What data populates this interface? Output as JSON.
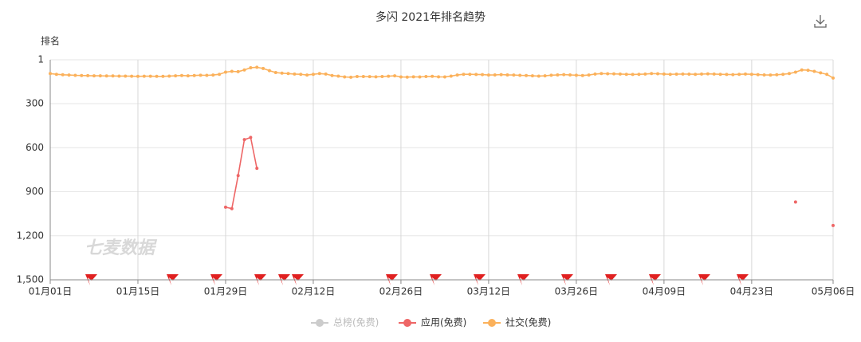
{
  "chart_data": {
    "type": "line",
    "title": "多闪 2021年排名趋势",
    "y_label": "排名",
    "watermark": "七麦数据",
    "categories": [
      "01月01日",
      null,
      null,
      null,
      null,
      null,
      null,
      null,
      null,
      null,
      null,
      null,
      null,
      null,
      "01月15日",
      null,
      null,
      null,
      null,
      null,
      null,
      null,
      null,
      null,
      null,
      null,
      null,
      null,
      "01月29日",
      null,
      null,
      null,
      null,
      null,
      null,
      null,
      null,
      null,
      null,
      null,
      null,
      null,
      "02月12日",
      null,
      null,
      null,
      null,
      null,
      null,
      null,
      null,
      null,
      null,
      null,
      null,
      null,
      "02月26日",
      null,
      null,
      null,
      null,
      null,
      null,
      null,
      null,
      null,
      null,
      null,
      null,
      null,
      "03月12日",
      null,
      null,
      null,
      null,
      null,
      null,
      null,
      null,
      null,
      null,
      null,
      null,
      null,
      "03月26日",
      null,
      null,
      null,
      null,
      null,
      null,
      null,
      null,
      null,
      null,
      null,
      null,
      null,
      "04月09日",
      null,
      null,
      null,
      null,
      null,
      null,
      null,
      null,
      null,
      null,
      null,
      null,
      null,
      "04月23日",
      null,
      null,
      null,
      null,
      null,
      null,
      null,
      null,
      null,
      null,
      null,
      null,
      "05月06日"
    ],
    "series": [
      {
        "name": "总榜(免费)",
        "color": "#cccccc",
        "hidden": true,
        "values": [
          null,
          null,
          null,
          null,
          null,
          null,
          null,
          null,
          null,
          null,
          null,
          null,
          null,
          null,
          null,
          null,
          null,
          null,
          null,
          null,
          null,
          null,
          null,
          null,
          null,
          null,
          null,
          null,
          null,
          null,
          null,
          null,
          null,
          null,
          null,
          null,
          null,
          null,
          null,
          null,
          null,
          null,
          null,
          null,
          null,
          null,
          null,
          null,
          null,
          null,
          null,
          null,
          null,
          null,
          null,
          null,
          null,
          null,
          null,
          null,
          null,
          null,
          null,
          null,
          null,
          null,
          null,
          null,
          null,
          null,
          null,
          null,
          null,
          null,
          null,
          null,
          null,
          null,
          null,
          null,
          null,
          null,
          null,
          null,
          null,
          null,
          null,
          null,
          null,
          null,
          null,
          null,
          null,
          null,
          null,
          null,
          null,
          null,
          null,
          null,
          null,
          null,
          null,
          null,
          null,
          null,
          null,
          null,
          null,
          null,
          null,
          null,
          null,
          null,
          null,
          null,
          null,
          null,
          null,
          null,
          null,
          null,
          null,
          null,
          null,
          null
        ]
      },
      {
        "name": "应用(免费)",
        "color": "#ee6666",
        "values": [
          null,
          null,
          null,
          null,
          null,
          null,
          null,
          null,
          null,
          null,
          null,
          null,
          null,
          null,
          null,
          null,
          null,
          null,
          null,
          null,
          null,
          null,
          null,
          null,
          null,
          null,
          null,
          null,
          1005,
          1015,
          790,
          545,
          530,
          740,
          null,
          null,
          null,
          null,
          null,
          null,
          null,
          null,
          null,
          null,
          null,
          null,
          null,
          null,
          null,
          null,
          null,
          null,
          null,
          null,
          null,
          null,
          null,
          null,
          null,
          null,
          null,
          null,
          null,
          null,
          null,
          null,
          null,
          null,
          null,
          null,
          null,
          null,
          null,
          null,
          null,
          null,
          null,
          null,
          null,
          null,
          null,
          null,
          null,
          null,
          null,
          null,
          null,
          null,
          null,
          null,
          null,
          null,
          null,
          null,
          null,
          null,
          null,
          null,
          null,
          null,
          null,
          null,
          null,
          null,
          null,
          null,
          null,
          null,
          null,
          null,
          null,
          null,
          null,
          null,
          null,
          null,
          null,
          null,
          null,
          970,
          null,
          null,
          null,
          null,
          null,
          1130
        ]
      },
      {
        "name": "社交(免费)",
        "color": "#fbb15b",
        "values": [
          95,
          100,
          103,
          105,
          107,
          108,
          109,
          110,
          110,
          111,
          111,
          112,
          112,
          113,
          114,
          113,
          113,
          114,
          114,
          112,
          110,
          108,
          110,
          108,
          106,
          107,
          105,
          100,
          85,
          80,
          82,
          70,
          55,
          52,
          60,
          75,
          88,
          92,
          95,
          98,
          100,
          105,
          100,
          95,
          98,
          108,
          112,
          118,
          120,
          115,
          115,
          116,
          117,
          115,
          113,
          110,
          118,
          119,
          117,
          118,
          115,
          114,
          117,
          118,
          112,
          105,
          100,
          100,
          101,
          102,
          105,
          104,
          102,
          104,
          105,
          107,
          108,
          110,
          112,
          110,
          106,
          104,
          102,
          104,
          106,
          108,
          105,
          98,
          95,
          96,
          97,
          98,
          100,
          101,
          100,
          98,
          95,
          96,
          98,
          100,
          99,
          98,
          99,
          100,
          98,
          97,
          98,
          100,
          101,
          102,
          100,
          98,
          100,
          102,
          104,
          105,
          103,
          100,
          95,
          85,
          70,
          72,
          80,
          90,
          100,
          125
        ]
      }
    ],
    "ylim": [
      1500,
      1
    ],
    "yticks": [
      1,
      300,
      600,
      900,
      {
        "value": 1200,
        "label": "1,200"
      },
      {
        "value": 1500,
        "label": "1,500"
      }
    ],
    "grid": true
  }
}
